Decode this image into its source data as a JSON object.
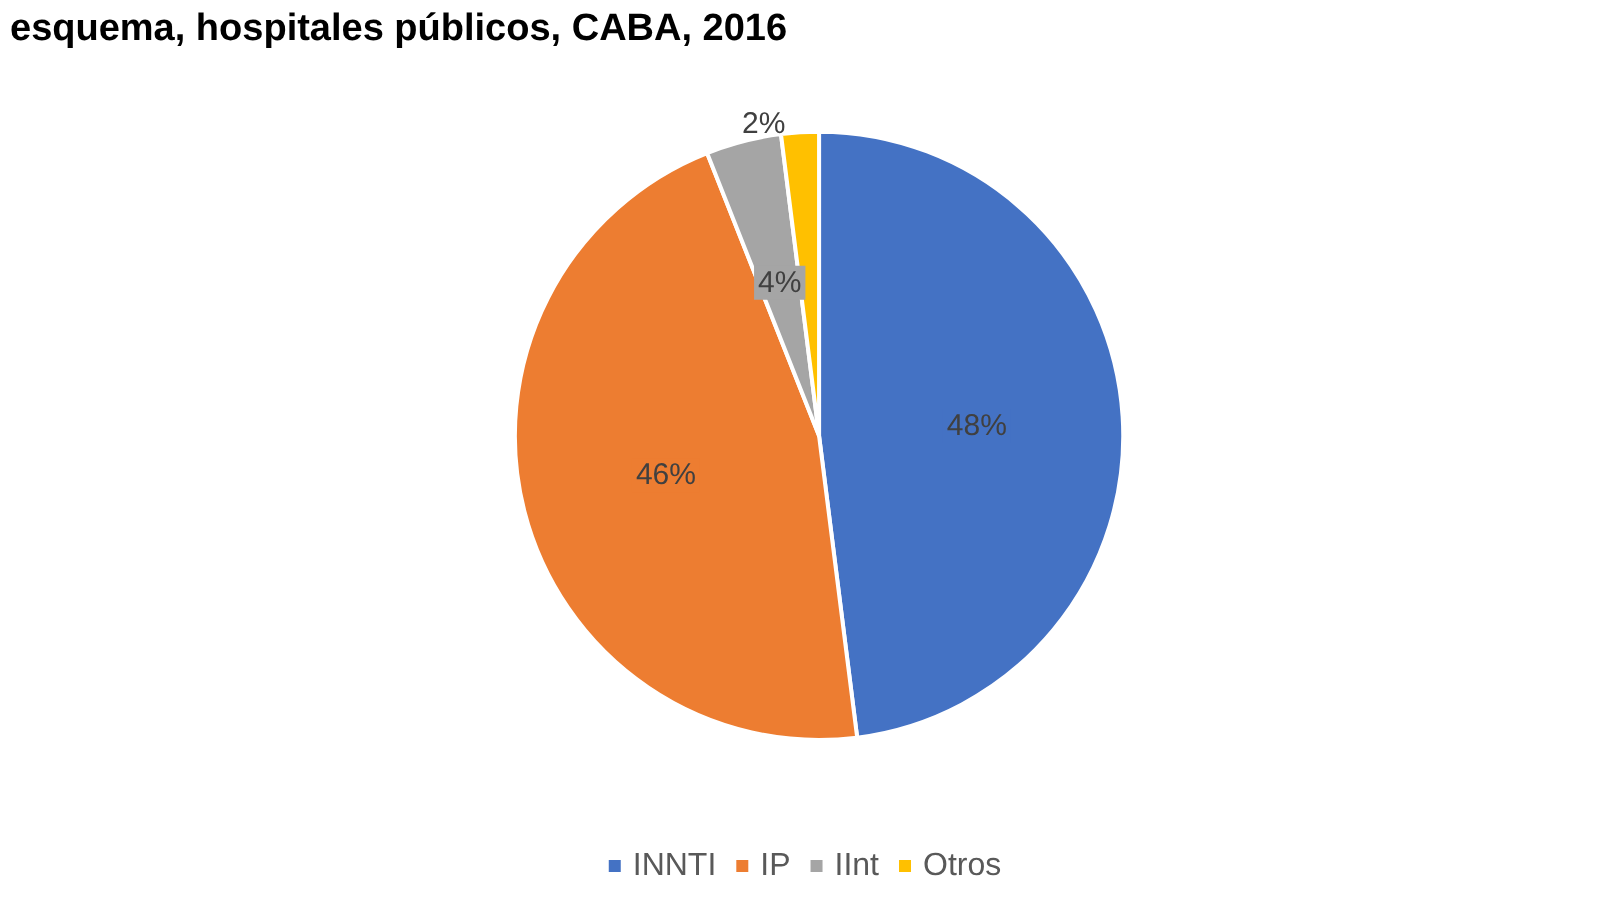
{
  "chart_data": {
    "type": "pie",
    "title": "esquema, hospitales públicos, CABA, 2016",
    "categories": [
      "INNTI",
      "IP",
      "IInt",
      "Otros"
    ],
    "values": [
      48,
      46,
      4,
      2
    ],
    "colors": [
      "#4472c4",
      "#ed7d31",
      "#a5a5a5",
      "#ffc000"
    ],
    "value_labels": [
      "48%",
      "46%",
      "4%",
      "2%"
    ],
    "legend": "bottom"
  }
}
